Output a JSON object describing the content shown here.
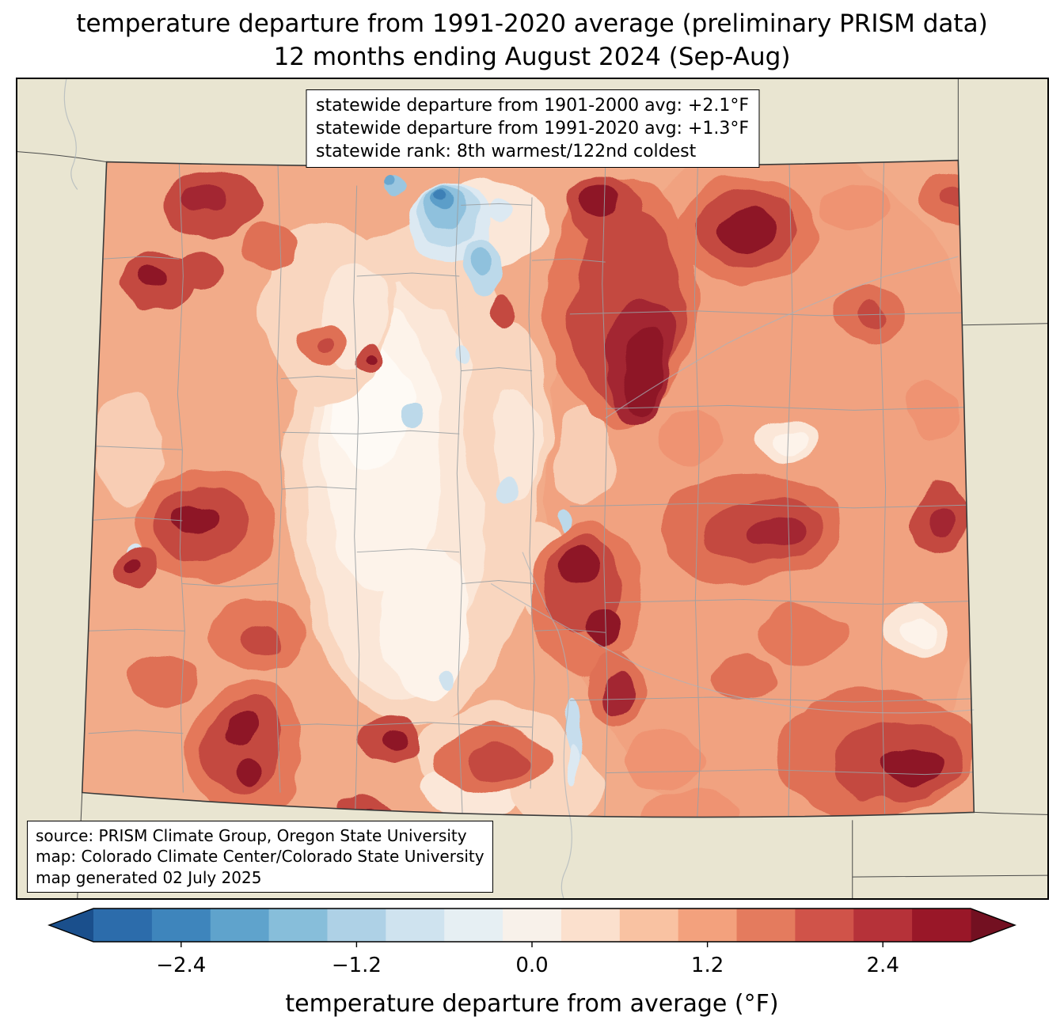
{
  "title": {
    "line1": "temperature departure from 1991-2020 average (preliminary PRISM data)",
    "line2": "12 months ending August 2024 (Sep-Aug)"
  },
  "stats_box": {
    "lines": [
      "statewide departure from 1901-2000 avg: +2.1°F",
      "statewide departure from 1991-2020 avg: +1.3°F",
      "statewide rank: 8th warmest/122nd coldest"
    ]
  },
  "source_box": {
    "lines": [
      "source: PRISM Climate Group, Oregon State University",
      "map: Colorado Climate Center/Colorado State University",
      "map generated 02 July 2025"
    ]
  },
  "colorbar": {
    "label": "temperature departure from average (°F)",
    "range": [
      -3,
      3
    ],
    "ticks": [
      {
        "value": -2.4,
        "label": "−2.4"
      },
      {
        "value": -1.2,
        "label": "−1.2"
      },
      {
        "value": 0,
        "label": "0.0"
      },
      {
        "value": 1.2,
        "label": "1.2"
      },
      {
        "value": 2.4,
        "label": "2.4"
      }
    ],
    "colors": [
      "#2c6cab",
      "#3e85bc",
      "#5fa3cc",
      "#87beda",
      "#aed1e6",
      "#cfe3ef",
      "#e6eff3",
      "#f8f1ea",
      "#fbe0cd",
      "#f9c2a2",
      "#f3a17d",
      "#e47b5e",
      "#d05349",
      "#b63239",
      "#991728"
    ],
    "under_color": "#1a4f8c",
    "over_color": "#731021"
  },
  "map": {
    "land_color": "#e9e5d1",
    "state_border_color": "#3a3a3a",
    "county_line_color": "#9aa0a3"
  }
}
